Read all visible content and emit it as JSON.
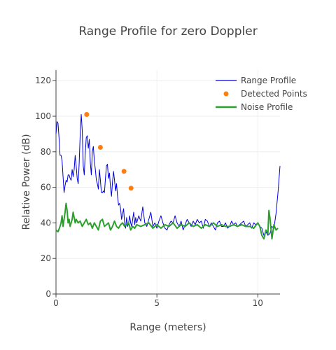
{
  "chart_data": {
    "type": "line",
    "title": "Range Profile for zero Doppler",
    "xlabel": "Range (meters)",
    "ylabel": "Relative Power (dB)",
    "xlim": [
      0,
      11.1
    ],
    "ylim": [
      0,
      126
    ],
    "x_ticks": [
      0,
      5,
      10
    ],
    "y_ticks": [
      0,
      20,
      40,
      60,
      80,
      100,
      120
    ],
    "grid": true,
    "legend_position": "top-right",
    "series": [
      {
        "name": "Range Profile",
        "type": "line",
        "color": "#0000dd",
        "x": [
          0,
          0.05,
          0.1,
          0.15,
          0.2,
          0.25,
          0.3,
          0.35,
          0.4,
          0.45,
          0.5,
          0.55,
          0.6,
          0.65,
          0.7,
          0.75,
          0.8,
          0.85,
          0.9,
          0.95,
          1.0,
          1.05,
          1.1,
          1.15,
          1.2,
          1.25,
          1.3,
          1.35,
          1.4,
          1.45,
          1.5,
          1.55,
          1.6,
          1.65,
          1.7,
          1.75,
          1.8,
          1.85,
          1.9,
          1.95,
          2.0,
          2.05,
          2.1,
          2.15,
          2.2,
          2.25,
          2.3,
          2.35,
          2.4,
          2.45,
          2.5,
          2.55,
          2.6,
          2.65,
          2.7,
          2.75,
          2.8,
          2.85,
          2.9,
          2.95,
          3.0,
          3.05,
          3.1,
          3.15,
          3.2,
          3.25,
          3.3,
          3.35,
          3.4,
          3.45,
          3.5,
          3.55,
          3.6,
          3.65,
          3.7,
          3.75,
          3.8,
          3.85,
          3.9,
          3.95,
          4.0,
          4.1,
          4.2,
          4.3,
          4.4,
          4.5,
          4.6,
          4.7,
          4.8,
          4.9,
          5.0,
          5.1,
          5.2,
          5.3,
          5.4,
          5.5,
          5.6,
          5.7,
          5.8,
          5.9,
          6.0,
          6.1,
          6.2,
          6.3,
          6.4,
          6.5,
          6.6,
          6.7,
          6.8,
          6.9,
          7.0,
          7.1,
          7.2,
          7.3,
          7.4,
          7.5,
          7.6,
          7.7,
          7.8,
          7.9,
          8.0,
          8.1,
          8.2,
          8.3,
          8.4,
          8.5,
          8.6,
          8.7,
          8.8,
          8.9,
          9.0,
          9.1,
          9.2,
          9.3,
          9.4,
          9.5,
          9.6,
          9.7,
          9.8,
          9.9,
          10.0,
          10.1,
          10.2,
          10.3,
          10.4,
          10.5,
          10.6,
          10.7,
          10.8,
          10.9,
          11.0,
          11.1
        ],
        "y": [
          90,
          97,
          96,
          88,
          78,
          78,
          75,
          66,
          57,
          61,
          64,
          63,
          67,
          67,
          65,
          64,
          70,
          66,
          70,
          78,
          72,
          65,
          62,
          74,
          90,
          101,
          92,
          72,
          67,
          79,
          88,
          89,
          82,
          87,
          74,
          67,
          80,
          83,
          75,
          70,
          64,
          62,
          59,
          70,
          64,
          57,
          57,
          58,
          57,
          65,
          72,
          73,
          65,
          68,
          60,
          55,
          63,
          69,
          64,
          58,
          62,
          55,
          50,
          51,
          48,
          42,
          45,
          48,
          40,
          37,
          43,
          38,
          40,
          44,
          40,
          38,
          42,
          46,
          39,
          43,
          40,
          44,
          41,
          49,
          40,
          38,
          42,
          46,
          38,
          40,
          37,
          41,
          44,
          40,
          37,
          36,
          39,
          41,
          40,
          44,
          40,
          38,
          41,
          36,
          39,
          42,
          40,
          38,
          41,
          39,
          42,
          40,
          41,
          37,
          42,
          41,
          38,
          40,
          38,
          36,
          40,
          41,
          38,
          38,
          40,
          37,
          38,
          41,
          39,
          40,
          38,
          39,
          40,
          41,
          38,
          39,
          40,
          37,
          40,
          39,
          40,
          38,
          37,
          33,
          35,
          33,
          34,
          38,
          37,
          45,
          57,
          72
        ]
      },
      {
        "name": "Detected Points",
        "type": "scatter",
        "color": "#ff7f0e",
        "x": [
          1.52,
          2.2,
          3.37,
          3.72
        ],
        "y": [
          101,
          82.5,
          69,
          59.5
        ]
      },
      {
        "name": "Noise Profile",
        "type": "line",
        "color": "#2ca02c",
        "x": [
          0,
          0.1,
          0.2,
          0.25,
          0.3,
          0.35,
          0.4,
          0.45,
          0.5,
          0.55,
          0.6,
          0.65,
          0.7,
          0.75,
          0.8,
          0.85,
          0.9,
          0.95,
          1.0,
          1.1,
          1.2,
          1.3,
          1.4,
          1.5,
          1.6,
          1.7,
          1.8,
          1.9,
          2.0,
          2.1,
          2.2,
          2.3,
          2.4,
          2.5,
          2.6,
          2.7,
          2.8,
          2.9,
          3.0,
          3.1,
          3.2,
          3.3,
          3.4,
          3.5,
          3.6,
          3.7,
          3.8,
          3.9,
          4.0,
          4.2,
          4.4,
          4.6,
          4.8,
          5.0,
          5.2,
          5.4,
          5.6,
          5.8,
          6.0,
          6.2,
          6.4,
          6.6,
          6.8,
          7.0,
          7.2,
          7.4,
          7.6,
          7.8,
          8.0,
          8.2,
          8.4,
          8.6,
          8.8,
          9.0,
          9.2,
          9.4,
          9.6,
          9.8,
          10.0,
          10.1,
          10.2,
          10.3,
          10.4,
          10.5,
          10.55,
          10.6,
          10.7,
          10.8,
          10.9,
          11.0
        ],
        "y": [
          36,
          35,
          38,
          40,
          44,
          38,
          42,
          46,
          51,
          47,
          40,
          42,
          38,
          40,
          42,
          46,
          43,
          40,
          42,
          40,
          41,
          38,
          40,
          42,
          39,
          40,
          37,
          40,
          38,
          36,
          41,
          42,
          38,
          39,
          40,
          36,
          38,
          41,
          38,
          37,
          39,
          40,
          38,
          39,
          40,
          36,
          38,
          37,
          39,
          38,
          39,
          40,
          37,
          39,
          37,
          39,
          38,
          40,
          37,
          39,
          38,
          40,
          38,
          39,
          37,
          39,
          38,
          40,
          38,
          39,
          38,
          38,
          39,
          38,
          39,
          38,
          38,
          37,
          40,
          38,
          33,
          31,
          36,
          34,
          47,
          43,
          31,
          39,
          36,
          37
        ]
      }
    ]
  }
}
